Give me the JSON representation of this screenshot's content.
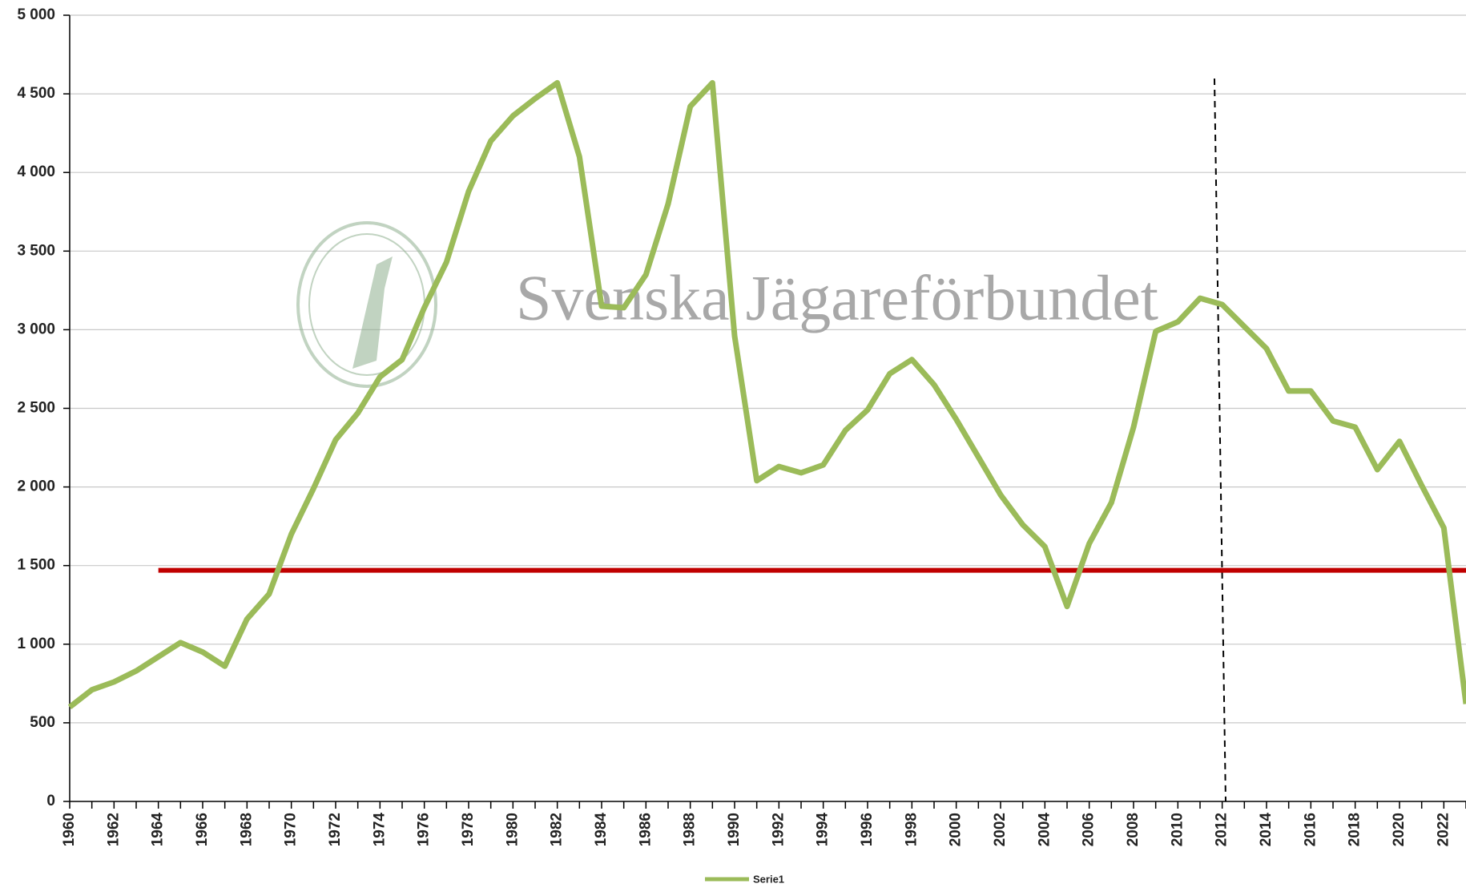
{
  "chart_data": {
    "type": "line",
    "watermark": "Svenska Jägareförbundet",
    "x": [
      1960,
      1961,
      1962,
      1963,
      1964,
      1965,
      1966,
      1967,
      1968,
      1969,
      1970,
      1971,
      1972,
      1973,
      1974,
      1975,
      1976,
      1977,
      1978,
      1979,
      1980,
      1981,
      1982,
      1983,
      1984,
      1985,
      1986,
      1987,
      1988,
      1989,
      1990,
      1991,
      1992,
      1993,
      1994,
      1995,
      1996,
      1997,
      1998,
      1999,
      2000,
      2001,
      2002,
      2003,
      2004,
      2005,
      2006,
      2007,
      2008,
      2009,
      2010,
      2011,
      2012,
      2013,
      2014,
      2015,
      2016,
      2017,
      2018,
      2019,
      2020,
      2021,
      2022,
      2023
    ],
    "series": [
      {
        "name": "Serie1",
        "color": "#9bbb59",
        "values": [
          600,
          710,
          760,
          830,
          920,
          1010,
          950,
          860,
          1160,
          1320,
          1700,
          1990,
          2300,
          2470,
          2700,
          2810,
          3140,
          3430,
          3880,
          4200,
          4360,
          4470,
          4570,
          4100,
          3150,
          3140,
          3350,
          3800,
          4420,
          4570,
          2960,
          2040,
          2130,
          2090,
          2140,
          2360,
          2490,
          2720,
          2810,
          2650,
          2430,
          2190,
          1950,
          1760,
          1620,
          1240,
          1640,
          1900,
          2380,
          2990,
          3050,
          3200,
          3160,
          3020,
          2880,
          2610,
          2610,
          2420,
          2380,
          2110,
          2290,
          2010,
          1740,
          620
        ]
      }
    ],
    "reference_line": {
      "value": 1470,
      "start": 1964,
      "color": "#c00000"
    },
    "xlim": [
      1960,
      2023
    ],
    "xticks": [
      1960,
      1962,
      1964,
      1966,
      1968,
      1970,
      1972,
      1974,
      1976,
      1978,
      1980,
      1982,
      1984,
      1986,
      1988,
      1990,
      1992,
      1994,
      1996,
      1998,
      2000,
      2002,
      2004,
      2006,
      2008,
      2010,
      2012,
      2014,
      2016,
      2018,
      2020,
      2022
    ],
    "ylim": [
      0,
      5000
    ],
    "yticks": [
      0,
      500,
      {
        "value": 1000,
        "label": "1 000"
      },
      {
        "value": 1500,
        "label": "1 500"
      },
      {
        "value": 2000,
        "label": "2 000"
      },
      {
        "value": 2500,
        "label": "2 500"
      },
      {
        "value": 3000,
        "label": "3 000"
      },
      {
        "value": 3500,
        "label": "3 500"
      },
      {
        "value": 4000,
        "label": "4 000"
      },
      {
        "value": 4500,
        "label": "4 500"
      },
      {
        "value": 5000,
        "label": "5 000"
      }
    ],
    "grid": true
  }
}
